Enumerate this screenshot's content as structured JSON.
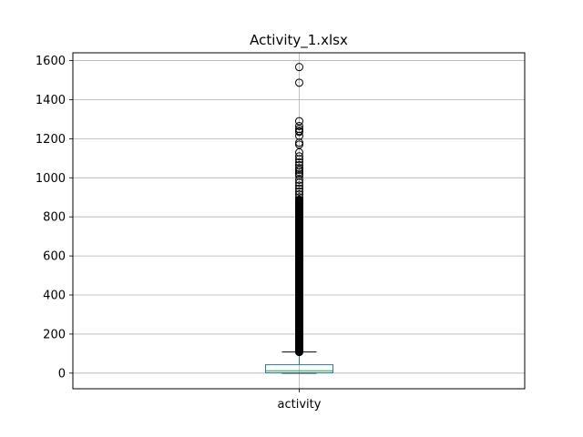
{
  "chart_data": {
    "type": "box",
    "title": "Activity_1.xlsx",
    "xlabel": "",
    "ylabel": "",
    "categories": [
      "activity"
    ],
    "ylim": [
      -80,
      1640
    ],
    "yticks": [
      0,
      200,
      400,
      600,
      800,
      1000,
      1200,
      1400,
      1600
    ],
    "grid": true,
    "box": {
      "category": "activity",
      "whisker_low": 0,
      "q1": 2,
      "median": 12,
      "q3": 43,
      "whisker_high": 108
    },
    "outliers": [
      1567,
      1487,
      1290,
      1265,
      1250,
      1240,
      1235,
      1215,
      1180,
      1170,
      1130,
      1110,
      1095,
      1080,
      1065,
      1050,
      1040,
      1030,
      1020,
      1010,
      990,
      975,
      960,
      945,
      930,
      915,
      900
    ],
    "outlier_dense_range": [
      108,
      890
    ],
    "colors": {
      "box": "#1f77b4",
      "median": "#2ca02c",
      "whisker": "#000000",
      "grid": "#b0b0b0"
    }
  }
}
